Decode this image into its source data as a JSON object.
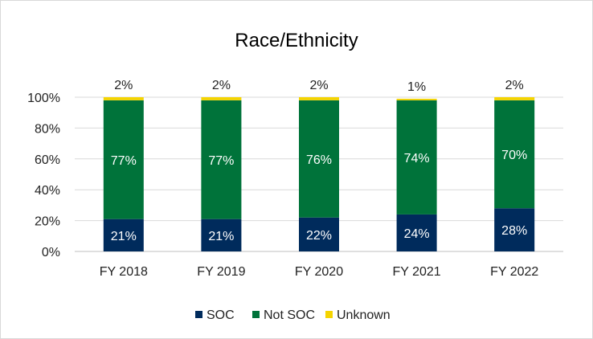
{
  "chart_data": {
    "type": "bar",
    "stacked": true,
    "title": "Race/Ethnicity",
    "xlabel": "",
    "ylabel": "",
    "categories": [
      "FY 2018",
      "FY 2019",
      "FY 2020",
      "FY 2021",
      "FY 2022"
    ],
    "series": [
      {
        "name": "SOC",
        "color": "#002b5c",
        "label_color": "#ffffff",
        "values": [
          21,
          21,
          22,
          24,
          28
        ],
        "labels": [
          "21%",
          "21%",
          "22%",
          "24%",
          "28%"
        ]
      },
      {
        "name": "Not SOC",
        "color": "#00733a",
        "label_color": "#ffffff",
        "values": [
          77,
          77,
          76,
          74,
          70
        ],
        "labels": [
          "77%",
          "77%",
          "76%",
          "74%",
          "70%"
        ]
      },
      {
        "name": "Unknown",
        "color": "#f5d400",
        "label_color": "#222222",
        "values": [
          2,
          2,
          2,
          1,
          2
        ],
        "labels": [
          "2%",
          "2%",
          "2%",
          "1%",
          "2%"
        ]
      }
    ],
    "ylim": [
      0,
      100
    ],
    "yticks": [
      0,
      20,
      40,
      60,
      80,
      100
    ],
    "ytick_labels": [
      "0%",
      "20%",
      "40%",
      "60%",
      "80%",
      "100%"
    ],
    "grid": true,
    "legend": "bottom"
  }
}
